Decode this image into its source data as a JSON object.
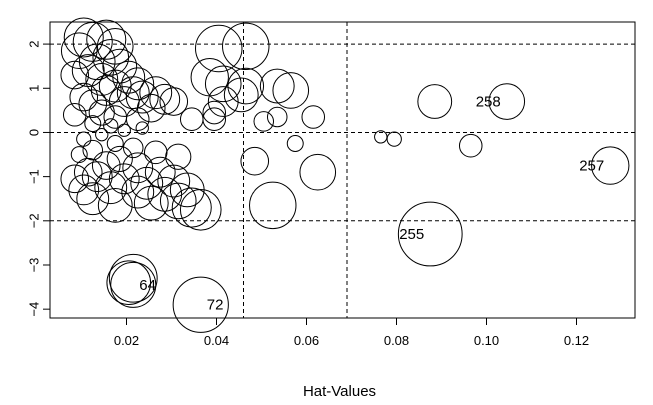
{
  "chart_data": {
    "type": "scatter",
    "xlabel": "Hat-Values",
    "ylabel": "",
    "title": "",
    "xlim": [
      0.003,
      0.133
    ],
    "ylim": [
      -4.2,
      2.5
    ],
    "x_ticks": [
      0.02,
      0.04,
      0.06,
      0.08,
      0.1,
      0.12
    ],
    "x_tick_labels": [
      "0.02",
      "0.04",
      "0.06",
      "0.08",
      "0.10",
      "0.12"
    ],
    "y_ticks": [
      2,
      1,
      0,
      -1,
      -2,
      -3,
      -4
    ],
    "y_tick_labels": [
      "2",
      "1",
      "0",
      "−1",
      "−2",
      "−3",
      "−4"
    ],
    "reference_lines": {
      "horizontal": [
        2,
        0,
        -2
      ],
      "vertical": [
        0.046,
        0.069
      ],
      "style": "dashed"
    },
    "bubble_size_meaning": "Cook's distance",
    "points": [
      {
        "x": 0.0105,
        "y": 2.15,
        "s": 0.6
      },
      {
        "x": 0.0125,
        "y": 2.05,
        "s": 0.6
      },
      {
        "x": 0.0155,
        "y": 2.1,
        "s": 0.6
      },
      {
        "x": 0.0175,
        "y": 1.95,
        "s": 0.5
      },
      {
        "x": 0.0095,
        "y": 1.85,
        "s": 0.5
      },
      {
        "x": 0.0165,
        "y": 1.7,
        "s": 0.5
      },
      {
        "x": 0.0135,
        "y": 1.6,
        "s": 0.5
      },
      {
        "x": 0.0185,
        "y": 1.5,
        "s": 0.45
      },
      {
        "x": 0.0115,
        "y": 1.4,
        "s": 0.4
      },
      {
        "x": 0.0085,
        "y": 1.3,
        "s": 0.3
      },
      {
        "x": 0.0145,
        "y": 1.2,
        "s": 0.4
      },
      {
        "x": 0.0205,
        "y": 1.25,
        "s": 0.4
      },
      {
        "x": 0.0225,
        "y": 1.1,
        "s": 0.4
      },
      {
        "x": 0.0175,
        "y": 1.05,
        "s": 0.4
      },
      {
        "x": 0.0155,
        "y": 0.95,
        "s": 0.35
      },
      {
        "x": 0.0215,
        "y": 0.9,
        "s": 0.4
      },
      {
        "x": 0.0235,
        "y": 0.8,
        "s": 0.4
      },
      {
        "x": 0.0195,
        "y": 0.7,
        "s": 0.35
      },
      {
        "x": 0.0265,
        "y": 0.9,
        "s": 0.4
      },
      {
        "x": 0.0285,
        "y": 0.75,
        "s": 0.35
      },
      {
        "x": 0.0125,
        "y": 0.65,
        "s": 0.3
      },
      {
        "x": 0.0105,
        "y": 0.8,
        "s": 0.3
      },
      {
        "x": 0.0255,
        "y": 0.55,
        "s": 0.3
      },
      {
        "x": 0.0305,
        "y": 0.7,
        "s": 0.3
      },
      {
        "x": 0.0145,
        "y": 0.45,
        "s": 0.25
      },
      {
        "x": 0.0085,
        "y": 0.4,
        "s": 0.2
      },
      {
        "x": 0.0175,
        "y": 0.35,
        "s": 0.2
      },
      {
        "x": 0.0225,
        "y": 0.3,
        "s": 0.2
      },
      {
        "x": 0.0345,
        "y": 0.3,
        "s": 0.2
      },
      {
        "x": 0.0395,
        "y": 0.3,
        "s": 0.2
      },
      {
        "x": 0.0125,
        "y": 0.2,
        "s": 0.1
      },
      {
        "x": 0.0165,
        "y": 0.15,
        "s": 0.08
      },
      {
        "x": 0.0195,
        "y": 0.05,
        "s": 0.06
      },
      {
        "x": 0.0235,
        "y": 0.1,
        "s": 0.06
      },
      {
        "x": 0.0145,
        "y": -0.05,
        "s": 0.06
      },
      {
        "x": 0.0105,
        "y": -0.15,
        "s": 0.08
      },
      {
        "x": 0.0175,
        "y": -0.25,
        "s": 0.1
      },
      {
        "x": 0.0215,
        "y": -0.35,
        "s": 0.15
      },
      {
        "x": 0.0265,
        "y": -0.45,
        "s": 0.2
      },
      {
        "x": 0.0125,
        "y": -0.4,
        "s": 0.15
      },
      {
        "x": 0.0095,
        "y": -0.5,
        "s": 0.1
      },
      {
        "x": 0.0315,
        "y": -0.55,
        "s": 0.25
      },
      {
        "x": 0.0185,
        "y": -0.6,
        "s": 0.25
      },
      {
        "x": 0.0155,
        "y": -0.75,
        "s": 0.3
      },
      {
        "x": 0.0225,
        "y": -0.8,
        "s": 0.35
      },
      {
        "x": 0.0115,
        "y": -0.9,
        "s": 0.3
      },
      {
        "x": 0.0275,
        "y": -0.9,
        "s": 0.35
      },
      {
        "x": 0.0135,
        "y": -1.0,
        "s": 0.35
      },
      {
        "x": 0.0085,
        "y": -1.05,
        "s": 0.3
      },
      {
        "x": 0.0195,
        "y": -1.05,
        "s": 0.35
      },
      {
        "x": 0.0245,
        "y": -1.15,
        "s": 0.4
      },
      {
        "x": 0.0305,
        "y": -1.1,
        "s": 0.4
      },
      {
        "x": 0.0165,
        "y": -1.25,
        "s": 0.4
      },
      {
        "x": 0.0105,
        "y": -1.3,
        "s": 0.35
      },
      {
        "x": 0.0225,
        "y": -1.35,
        "s": 0.4
      },
      {
        "x": 0.0285,
        "y": -1.4,
        "s": 0.45
      },
      {
        "x": 0.0335,
        "y": -1.3,
        "s": 0.45
      },
      {
        "x": 0.0125,
        "y": -1.5,
        "s": 0.4
      },
      {
        "x": 0.0175,
        "y": -1.65,
        "s": 0.45
      },
      {
        "x": 0.0255,
        "y": -1.6,
        "s": 0.45
      },
      {
        "x": 0.0315,
        "y": -1.55,
        "s": 0.5
      },
      {
        "x": 0.0345,
        "y": -1.7,
        "s": 0.6
      },
      {
        "x": 0.0365,
        "y": -1.75,
        "s": 0.65
      },
      {
        "x": 0.0405,
        "y": 1.9,
        "s": 0.85
      },
      {
        "x": 0.0465,
        "y": 1.95,
        "s": 0.85
      },
      {
        "x": 0.0385,
        "y": 1.25,
        "s": 0.55
      },
      {
        "x": 0.0415,
        "y": 1.1,
        "s": 0.5
      },
      {
        "x": 0.0465,
        "y": 1.05,
        "s": 0.5
      },
      {
        "x": 0.0455,
        "y": 0.85,
        "s": 0.45
      },
      {
        "x": 0.0415,
        "y": 0.7,
        "s": 0.35
      },
      {
        "x": 0.0395,
        "y": 0.45,
        "s": 0.2
      },
      {
        "x": 0.0535,
        "y": 1.05,
        "s": 0.45
      },
      {
        "x": 0.0565,
        "y": 0.95,
        "s": 0.5
      },
      {
        "x": 0.0505,
        "y": 0.25,
        "s": 0.15
      },
      {
        "x": 0.0535,
        "y": 0.35,
        "s": 0.15
      },
      {
        "x": 0.0615,
        "y": 0.35,
        "s": 0.2
      },
      {
        "x": 0.0575,
        "y": -0.25,
        "s": 0.1
      },
      {
        "x": 0.0485,
        "y": -0.65,
        "s": 0.3
      },
      {
        "x": 0.0625,
        "y": -0.9,
        "s": 0.5
      },
      {
        "x": 0.0525,
        "y": -1.65,
        "s": 0.85
      },
      {
        "x": 0.0765,
        "y": -0.1,
        "s": 0.06
      },
      {
        "x": 0.0795,
        "y": -0.15,
        "s": 0.08
      },
      {
        "x": 0.0885,
        "y": 0.7,
        "s": 0.45
      },
      {
        "x": 0.0965,
        "y": -0.3,
        "s": 0.2
      },
      {
        "x": 0.1045,
        "y": 0.7,
        "s": 0.5
      },
      {
        "x": 0.1275,
        "y": -0.75,
        "s": 0.55
      },
      {
        "x": 0.0875,
        "y": -2.3,
        "s": 1.6
      },
      {
        "x": 0.0215,
        "y": -3.3,
        "s": 0.9
      },
      {
        "x": 0.0215,
        "y": -3.45,
        "s": 0.8
      },
      {
        "x": 0.0205,
        "y": -3.4,
        "s": 0.75
      },
      {
        "x": 0.0365,
        "y": -3.9,
        "s": 1.2
      }
    ],
    "labeled_points": [
      {
        "label": "258",
        "x": 0.1045,
        "y": 0.7,
        "ha": "right"
      },
      {
        "label": "257",
        "x": 0.1275,
        "y": -0.75,
        "ha": "right"
      },
      {
        "label": "255",
        "x": 0.0875,
        "y": -2.3,
        "ha": "right"
      },
      {
        "label": "64",
        "x": 0.0215,
        "y": -3.45,
        "ha": "left"
      },
      {
        "label": "72",
        "x": 0.0365,
        "y": -3.9,
        "ha": "left"
      }
    ]
  }
}
